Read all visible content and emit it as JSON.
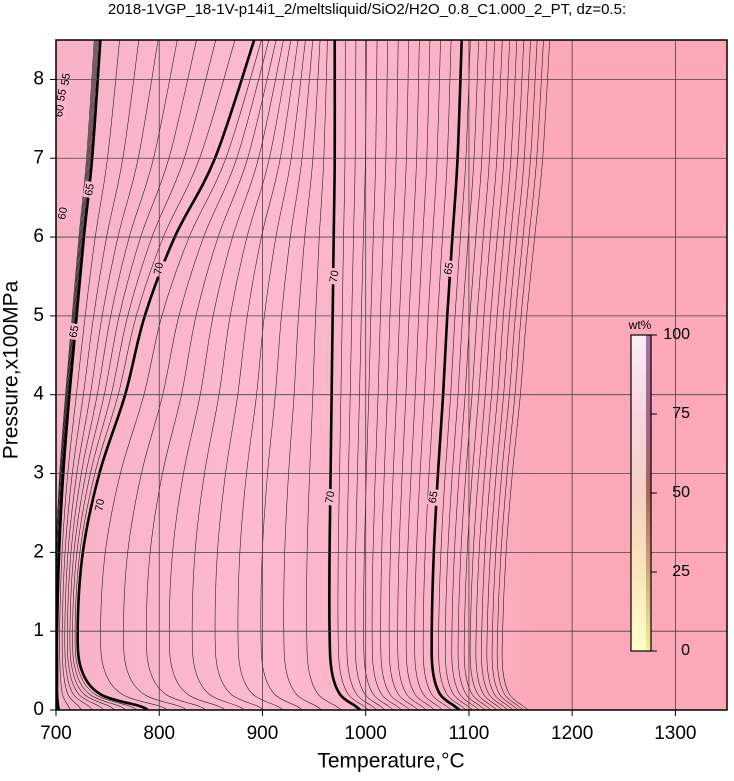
{
  "chart_data": {
    "type": "contour",
    "title": "2018-1VGP_18-1V-p14i1_2/meltsliquid/SiO2/H2O_0.8_C1.000_2_PT, dz=0.5:",
    "x_label": "Temperature,°C",
    "y_label": "Pressure,x100MPa",
    "xlim": [
      700,
      1350
    ],
    "ylim": [
      0,
      8.5
    ],
    "xticks": [
      700,
      800,
      900,
      1000,
      1100,
      1200,
      1300
    ],
    "yticks": [
      0,
      1,
      2,
      3,
      4,
      5,
      6,
      7,
      8
    ],
    "grid": true,
    "pressures": [
      8.5,
      7,
      6,
      5,
      4,
      3,
      2,
      1,
      0.5,
      0.2,
      0.05,
      0
    ],
    "contours": [
      {
        "temperatures": [
          743,
          735,
          727,
          720,
          713,
          707,
          703,
          701,
          701,
          701,
          702,
          703
        ]
      },
      {
        "temperatures": [
          892,
          854,
          815,
          786,
          767,
          742,
          726,
          721,
          725,
          743,
          781,
          789
        ]
      },
      {
        "temperatures": [
          970,
          970,
          969,
          968,
          967,
          966,
          965,
          965,
          967,
          975,
          990,
          995
        ]
      },
      {
        "temperatures": [
          1093,
          1089,
          1084,
          1079,
          1075,
          1070,
          1066,
          1064,
          1065,
          1072,
          1086,
          1091
        ]
      }
    ],
    "contour_labels": [
      {
        "value": 70,
        "x": 800,
        "y": 5.6
      },
      {
        "value": 65,
        "x": 733,
        "y": 6.6
      },
      {
        "value": 65,
        "x": 718,
        "y": 4.8
      },
      {
        "value": 60,
        "x": 707,
        "y": 6.3
      },
      {
        "value": 70,
        "x": 743,
        "y": 2.6
      },
      {
        "value": 70,
        "x": 970,
        "y": 5.5
      },
      {
        "value": 70,
        "x": 966,
        "y": 2.7
      },
      {
        "value": 65,
        "x": 1081,
        "y": 5.6
      },
      {
        "value": 65,
        "x": 1066,
        "y": 2.7
      },
      {
        "value": 55,
        "x": 706,
        "y": 7.8
      },
      {
        "value": 60,
        "x": 704,
        "y": 7.6
      },
      {
        "value": 55,
        "x": 710,
        "y": 8.0
      }
    ],
    "colorbar": {
      "label": "wt%",
      "lim": [
        0,
        100
      ],
      "ticks": [
        0,
        25,
        50,
        75,
        100
      ]
    }
  }
}
